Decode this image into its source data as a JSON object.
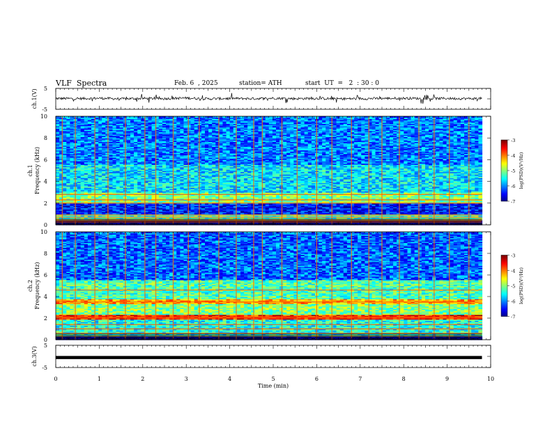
{
  "header": {
    "title": "VLF  Spectra",
    "date": "Feb. 6  , 2025",
    "station": "station= ATH",
    "start_ut": "start  UT  =   2  : 30 : 0"
  },
  "chart_data": [
    {
      "type": "line",
      "panel": "ch1-voltage",
      "ylabel": "ch.1(V)",
      "ylim": [
        -5,
        5
      ],
      "yticks": [
        "5",
        "-5"
      ],
      "xlim": [
        0,
        10
      ],
      "x": [
        0,
        0.5,
        1,
        1.5,
        2,
        2.5,
        3,
        3.5,
        4,
        4.5,
        5,
        5.5,
        6,
        6.5,
        7,
        7.5,
        8,
        8.5,
        9,
        9.5,
        9.8
      ],
      "values": [
        0.2,
        0.1,
        0.3,
        0.0,
        0.2,
        0.1,
        0.4,
        0.0,
        0.2,
        0.1,
        0.3,
        0.1,
        0.2,
        0.0,
        0.1,
        0.2,
        0.3,
        0.1,
        0.2,
        0.1,
        0.2
      ],
      "color": "#000000"
    },
    {
      "type": "heatmap",
      "panel": "ch1-spectrogram",
      "ylabel": "ch.1\nFrequency (kHz)",
      "ylabel_lines": [
        "ch.1",
        "Frequency  (kHz)"
      ],
      "ylim": [
        0,
        10
      ],
      "yticks": [
        "0",
        "2",
        "4",
        "6",
        "8",
        "10"
      ],
      "xlim": [
        0,
        9.8
      ],
      "colorbar": {
        "label": "log(PSD)(V²/Hz)",
        "ticks": [
          "-3",
          "-4",
          "-5",
          "-6",
          "-7"
        ],
        "range": [
          -7,
          -3
        ]
      },
      "background_levels": [
        {
          "f": [
            0,
            0.4
          ],
          "level": -7.0
        },
        {
          "f": [
            0.4,
            0.9
          ],
          "level": -5.2
        },
        {
          "f": [
            0.9,
            2.0
          ],
          "level": -6.4
        },
        {
          "f": [
            2.0,
            3.0
          ],
          "level": -5.0
        },
        {
          "f": [
            3.0,
            5.5
          ],
          "level": -5.6
        },
        {
          "f": [
            5.5,
            10
          ],
          "level": -6.0
        }
      ],
      "lines_khz": [
        0.2,
        0.35,
        0.5,
        0.7,
        0.9,
        2.0,
        2.3,
        2.8
      ],
      "spikes_min": [
        0.15,
        0.45,
        0.9,
        1.2,
        1.6,
        2.05,
        2.3,
        2.7,
        3.05,
        3.3,
        3.75,
        4.15,
        4.55,
        4.75,
        5.2,
        5.55,
        6.0,
        6.35,
        6.8,
        7.2,
        7.5,
        7.9,
        8.35,
        8.7,
        9.05,
        9.5
      ]
    },
    {
      "type": "heatmap",
      "panel": "ch2-spectrogram",
      "ylabel_lines": [
        "ch.2",
        "Frequency  (kHz)"
      ],
      "ylim": [
        0,
        10
      ],
      "yticks": [
        "0",
        "2",
        "4",
        "6",
        "8",
        "10"
      ],
      "xlim": [
        0,
        9.8
      ],
      "colorbar": {
        "label": "log(PSD)(V²/Hz)",
        "ticks": [
          "-3",
          "-4",
          "-5",
          "-6",
          "-7"
        ],
        "range": [
          -7,
          -3
        ]
      },
      "background_levels": [
        {
          "f": [
            0,
            0.3
          ],
          "level": -7.0
        },
        {
          "f": [
            0.3,
            1.8
          ],
          "level": -5.4
        },
        {
          "f": [
            1.8,
            2.3
          ],
          "level": -3.6
        },
        {
          "f": [
            2.3,
            3.3
          ],
          "level": -5.0
        },
        {
          "f": [
            3.3,
            3.7
          ],
          "level": -4.2
        },
        {
          "f": [
            3.7,
            5.5
          ],
          "level": -5.2
        },
        {
          "f": [
            5.5,
            10
          ],
          "level": -6.1
        }
      ],
      "lines_khz": [
        0.3,
        0.6,
        1.0,
        1.4,
        2.0,
        2.1,
        3.5,
        4.6
      ],
      "spikes_min": [
        0.15,
        0.45,
        0.9,
        1.2,
        1.6,
        2.05,
        2.3,
        2.7,
        3.05,
        3.3,
        3.75,
        4.15,
        4.55,
        4.75,
        5.2,
        5.55,
        6.0,
        6.35,
        6.8,
        7.2,
        7.5,
        7.9,
        8.35,
        8.7,
        9.05,
        9.5
      ]
    },
    {
      "type": "line",
      "panel": "ch3-voltage",
      "ylabel": "ch.3(V)",
      "ylim": [
        -5,
        5
      ],
      "yticks": [
        "5",
        "-5"
      ],
      "xlim": [
        0,
        10
      ],
      "x": [
        0,
        9.8
      ],
      "values": [
        -0.5,
        -0.5
      ],
      "color": "#000000"
    }
  ],
  "x_axis": {
    "xlabel": "Time  (min)",
    "ticks": [
      "0",
      "1",
      "2",
      "3",
      "4",
      "5",
      "6",
      "7",
      "8",
      "9",
      "10"
    ]
  }
}
